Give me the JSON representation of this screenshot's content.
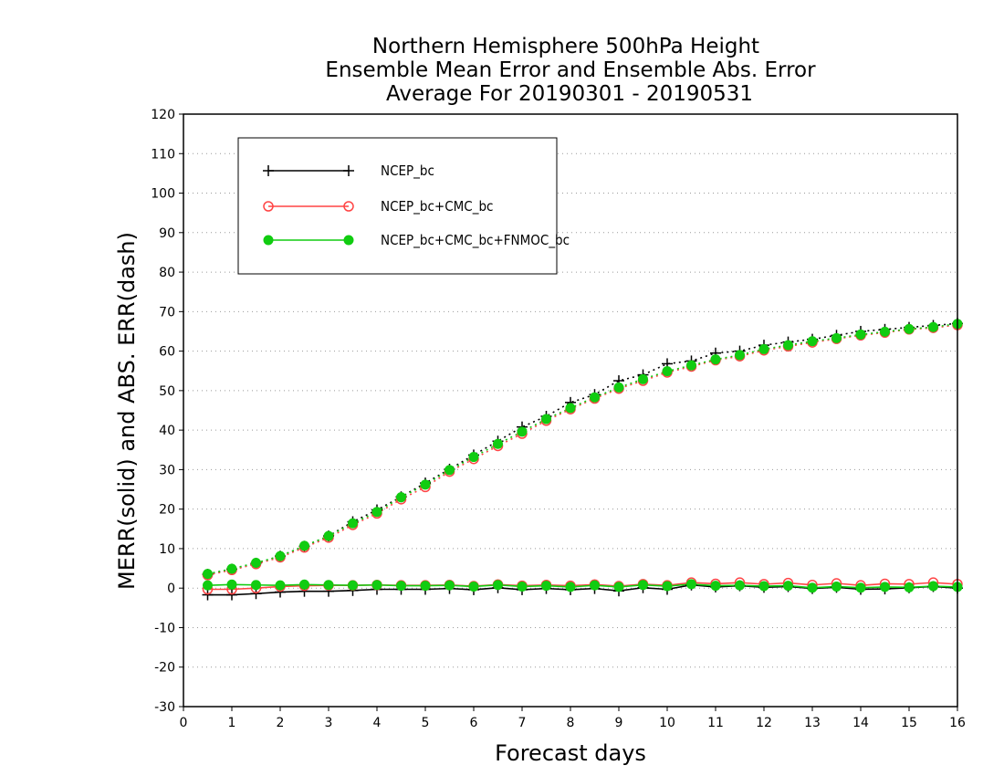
{
  "chart_data": {
    "type": "line",
    "title_lines": [
      "Northern Hemisphere 500hPa Height",
      "Ensemble Mean Error and Ensemble Abs. Error",
      "Average For 20190301 - 20190531"
    ],
    "xlabel": "Forecast days",
    "ylabel": "MERR(solid) and ABS. ERR(dash)",
    "xlim": [
      0,
      16
    ],
    "ylim": [
      -30,
      120
    ],
    "xticks": [
      "0",
      "1",
      "2",
      "3",
      "4",
      "5",
      "6",
      "7",
      "8",
      "9",
      "10",
      "11",
      "12",
      "13",
      "14",
      "15",
      "16"
    ],
    "yticks": [
      "-30",
      "-20",
      "-10",
      "0",
      "10",
      "20",
      "30",
      "40",
      "50",
      "60",
      "70",
      "80",
      "90",
      "100",
      "110",
      "120"
    ],
    "grid": "horizontal dotted",
    "legend_position": "top-left",
    "x": [
      0.5,
      1,
      1.5,
      2,
      2.5,
      3,
      3.5,
      4,
      4.5,
      5,
      5.5,
      6,
      6.5,
      7,
      7.5,
      8,
      8.5,
      9,
      9.5,
      10,
      10.5,
      11,
      11.5,
      12,
      12.5,
      13,
      13.5,
      14,
      14.5,
      15,
      15.5,
      16
    ],
    "series": [
      {
        "name": "NCEP_bc",
        "color": "#000000",
        "marker": "plus",
        "merr": [
          -1.7,
          -1.7,
          -1.4,
          -1.0,
          -0.8,
          -0.8,
          -0.6,
          -0.3,
          -0.3,
          -0.3,
          -0.1,
          -0.4,
          0.1,
          -0.4,
          -0.1,
          -0.4,
          -0.1,
          -0.7,
          0.1,
          -0.3,
          0.8,
          0.3,
          0.6,
          0.2,
          0.4,
          -0.1,
          0.2,
          -0.3,
          -0.2,
          0.1,
          0.4,
          0.0
        ],
        "abs_err": [
          3.5,
          4.8,
          6.3,
          8.1,
          10.6,
          13.2,
          16.8,
          19.8,
          23.1,
          26.6,
          30.1,
          33.7,
          37.2,
          40.8,
          43.5,
          47.0,
          49.0,
          52.5,
          54.0,
          56.8,
          57.5,
          59.5,
          60.0,
          61.5,
          62.3,
          63.0,
          64.0,
          65.0,
          65.5,
          66.0,
          66.5,
          67.0
        ]
      },
      {
        "name": "NCEP_bc+CMC_bc",
        "color": "#ff4444",
        "marker": "open-circle",
        "merr": [
          -0.3,
          -0.3,
          0.0,
          0.4,
          0.6,
          0.7,
          0.7,
          0.8,
          0.7,
          0.7,
          0.8,
          0.5,
          0.9,
          0.6,
          0.8,
          0.6,
          0.9,
          0.5,
          1.0,
          0.7,
          1.4,
          1.1,
          1.4,
          1.0,
          1.3,
          0.8,
          1.2,
          0.7,
          1.1,
          1.0,
          1.4,
          1.0
        ],
        "abs_err": [
          3.3,
          4.6,
          6.1,
          7.8,
          10.3,
          12.8,
          16.0,
          18.9,
          22.5,
          25.6,
          29.5,
          32.7,
          36.0,
          39.1,
          42.4,
          45.3,
          48.0,
          50.5,
          52.5,
          54.6,
          56.1,
          57.7,
          58.7,
          60.2,
          61.2,
          62.2,
          63.1,
          64.0,
          64.7,
          65.5,
          65.9,
          66.6
        ]
      },
      {
        "name": "NCEP_bc+CMC_bc+FNMOC_bc",
        "color": "#11cc11",
        "marker": "filled-circle",
        "merr": [
          0.7,
          0.9,
          0.8,
          0.7,
          0.9,
          0.8,
          0.7,
          0.8,
          0.6,
          0.6,
          0.7,
          0.4,
          0.8,
          0.4,
          0.6,
          0.3,
          0.7,
          0.3,
          0.8,
          0.5,
          1.0,
          0.6,
          0.7,
          0.5,
          0.6,
          0.1,
          0.4,
          0.1,
          0.3,
          0.2,
          0.5,
          0.3
        ],
        "abs_err": [
          3.6,
          4.9,
          6.4,
          8.1,
          10.7,
          13.2,
          16.4,
          19.3,
          23.0,
          26.2,
          29.9,
          33.2,
          36.5,
          39.6,
          42.8,
          45.6,
          48.3,
          50.8,
          52.9,
          54.9,
          56.4,
          57.9,
          59.0,
          60.5,
          61.5,
          62.5,
          63.3,
          64.2,
          64.9,
          65.6,
          66.1,
          66.9
        ]
      }
    ]
  }
}
